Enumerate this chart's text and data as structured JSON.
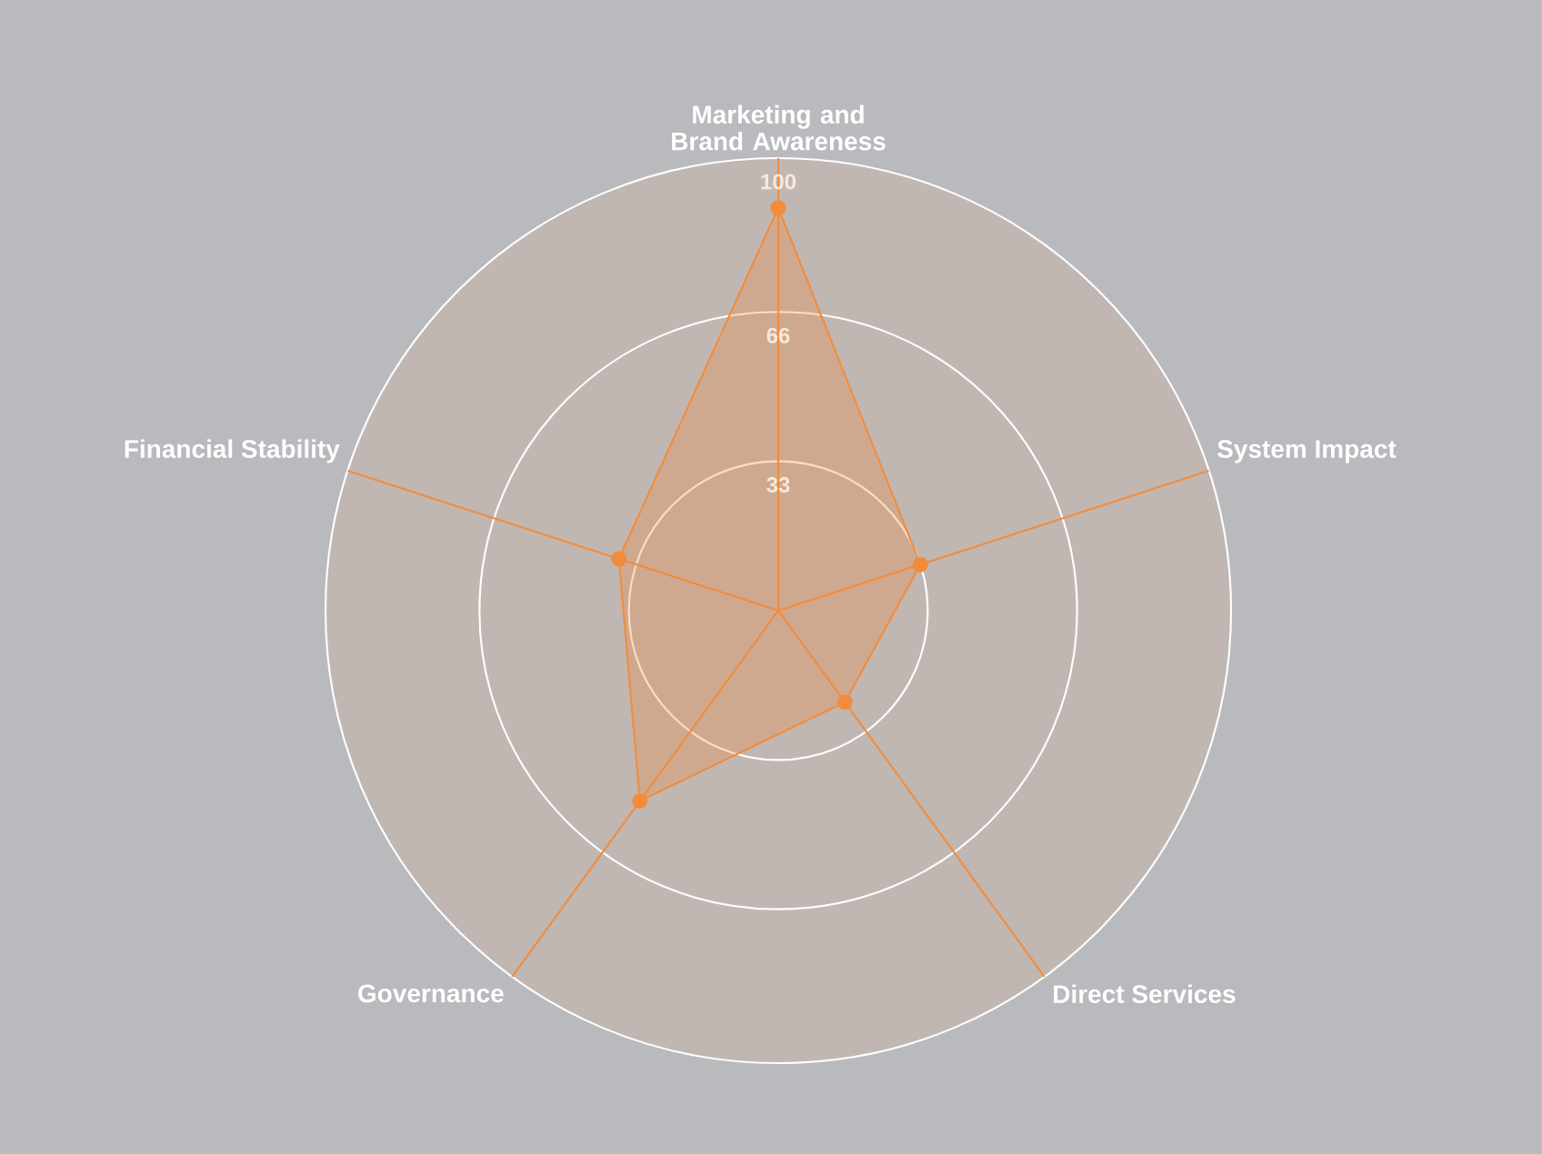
{
  "chart_data": {
    "type": "radar",
    "categories": [
      "Marketing and Brand Awareness",
      "System Impact",
      "Direct Services",
      "Governance",
      "Financial Stability"
    ],
    "series": [
      {
        "color": "#f28c3c",
        "values": [
          89,
          33,
          25,
          52,
          37
        ]
      }
    ],
    "ylim": [
      0,
      100
    ],
    "yticks": [
      33,
      66,
      100
    ],
    "marker": "circle",
    "grid": true
  }
}
